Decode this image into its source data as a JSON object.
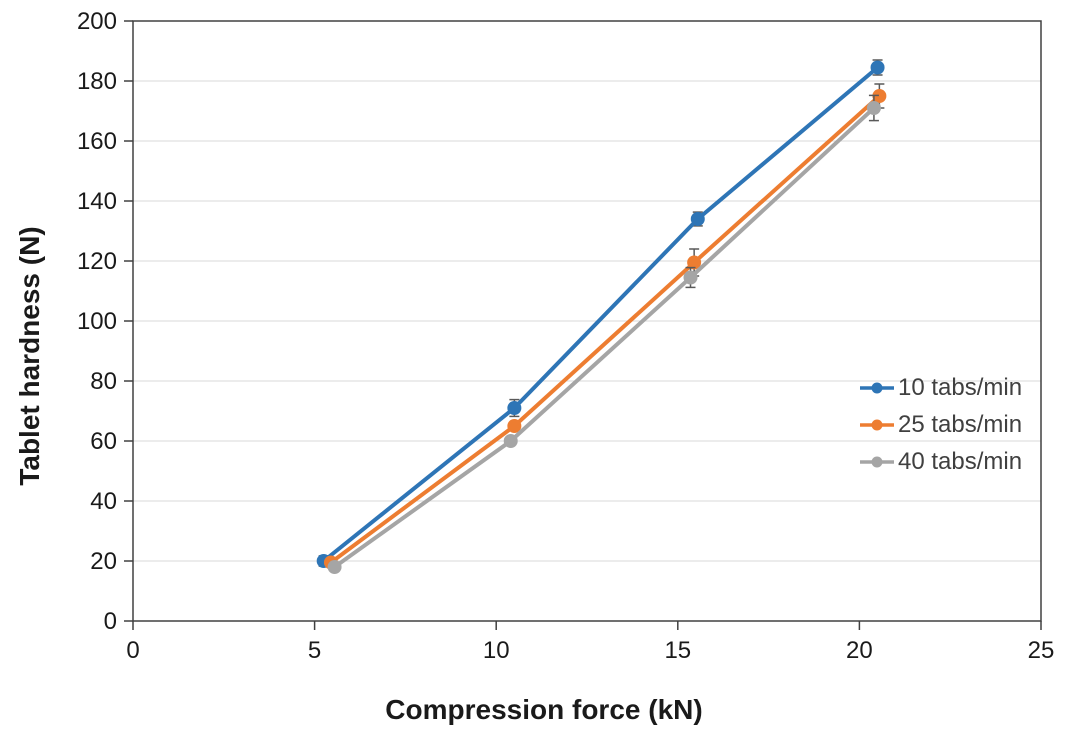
{
  "chart_data": {
    "type": "line",
    "title": "",
    "xlabel": "Compression force (kN)",
    "ylabel": "Tablet hardness (N)",
    "xlim": [
      0,
      25
    ],
    "ylim": [
      0,
      200
    ],
    "xticks": [
      0,
      5,
      10,
      15,
      20,
      25
    ],
    "yticks": [
      0,
      20,
      40,
      60,
      80,
      100,
      120,
      140,
      160,
      180,
      200
    ],
    "grid": "horizontal-only",
    "legend_position": "inside-right",
    "marker": "circle",
    "error_bars": true,
    "series": [
      {
        "name": "10 tabs/min",
        "color": "#2E75B6",
        "x": [
          5.25,
          10.5,
          15.55,
          20.5
        ],
        "y": [
          20,
          71,
          134,
          184.5
        ],
        "yerr": [
          1.7,
          2.8,
          2.3,
          2.5
        ]
      },
      {
        "name": "25 tabs/min",
        "color": "#ED7D31",
        "x": [
          5.45,
          10.5,
          15.45,
          20.55
        ],
        "y": [
          19.5,
          65,
          119.5,
          175
        ],
        "yerr": [
          1.0,
          1.0,
          4.5,
          4.0
        ]
      },
      {
        "name": "40 tabs/min",
        "color": "#A5A5A5",
        "x": [
          5.55,
          10.4,
          15.35,
          20.4
        ],
        "y": [
          18,
          60,
          114.5,
          171
        ],
        "yerr": [
          1.0,
          1.0,
          3.3,
          4.2
        ]
      }
    ],
    "colors": {
      "gridline": "#D9D9D9",
      "axis": "#404040",
      "tick_text": "#1a1a1a",
      "error_bar": "#595959",
      "legend_text": "#404040",
      "background": "#ffffff"
    }
  }
}
